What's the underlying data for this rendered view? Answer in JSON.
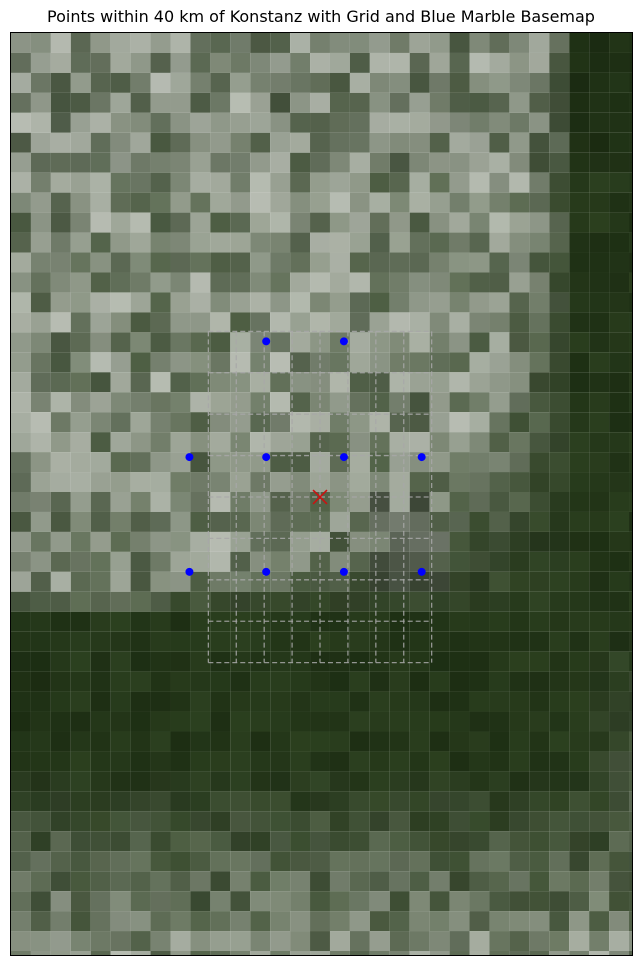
{
  "title": "Points within 40 km of Konstanz with Grid and Blue Marble Basemap",
  "map": {
    "center_label": "Konstanz",
    "radius_km": 40,
    "basemap": "Blue Marble",
    "colors": {
      "point": "#0000ff",
      "center_marker": "#cc1111",
      "grid": "#a8a8a8",
      "frame": "#000000",
      "basemap_dark": "#14230c",
      "basemap_mid": "#2e4321",
      "basemap_light": "#c8ccc4"
    },
    "icons": {
      "center": "x-marker-icon",
      "point": "dot-icon"
    }
  }
}
